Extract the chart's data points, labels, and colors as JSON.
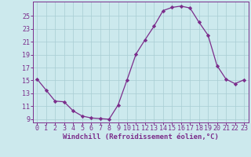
{
  "x": [
    0,
    1,
    2,
    3,
    4,
    5,
    6,
    7,
    8,
    9,
    10,
    11,
    12,
    13,
    14,
    15,
    16,
    17,
    18,
    19,
    20,
    21,
    22,
    23
  ],
  "y": [
    15.2,
    13.5,
    11.8,
    11.7,
    10.3,
    9.5,
    9.2,
    9.1,
    9.0,
    11.2,
    15.1,
    19.1,
    21.3,
    23.4,
    25.8,
    26.3,
    26.5,
    26.2,
    24.0,
    22.0,
    17.3,
    15.2,
    14.5,
    15.1
  ],
  "line_color": "#7b2d8b",
  "marker": "D",
  "markersize": 2.2,
  "xlabel": "Windchill (Refroidissement éolien,°C)",
  "ylim": [
    8.5,
    27.2
  ],
  "xlim": [
    -0.5,
    23.5
  ],
  "yticks": [
    9,
    11,
    13,
    15,
    17,
    19,
    21,
    23,
    25
  ],
  "xticks": [
    0,
    1,
    2,
    3,
    4,
    5,
    6,
    7,
    8,
    9,
    10,
    11,
    12,
    13,
    14,
    15,
    16,
    17,
    18,
    19,
    20,
    21,
    22,
    23
  ],
  "bg_color": "#cce9ed",
  "grid_color": "#a8cdd3",
  "tick_color": "#7b2d8b",
  "xlabel_color": "#7b2d8b",
  "xlabel_fontsize": 6.5,
  "tick_fontsize": 6.0,
  "linewidth": 0.9
}
